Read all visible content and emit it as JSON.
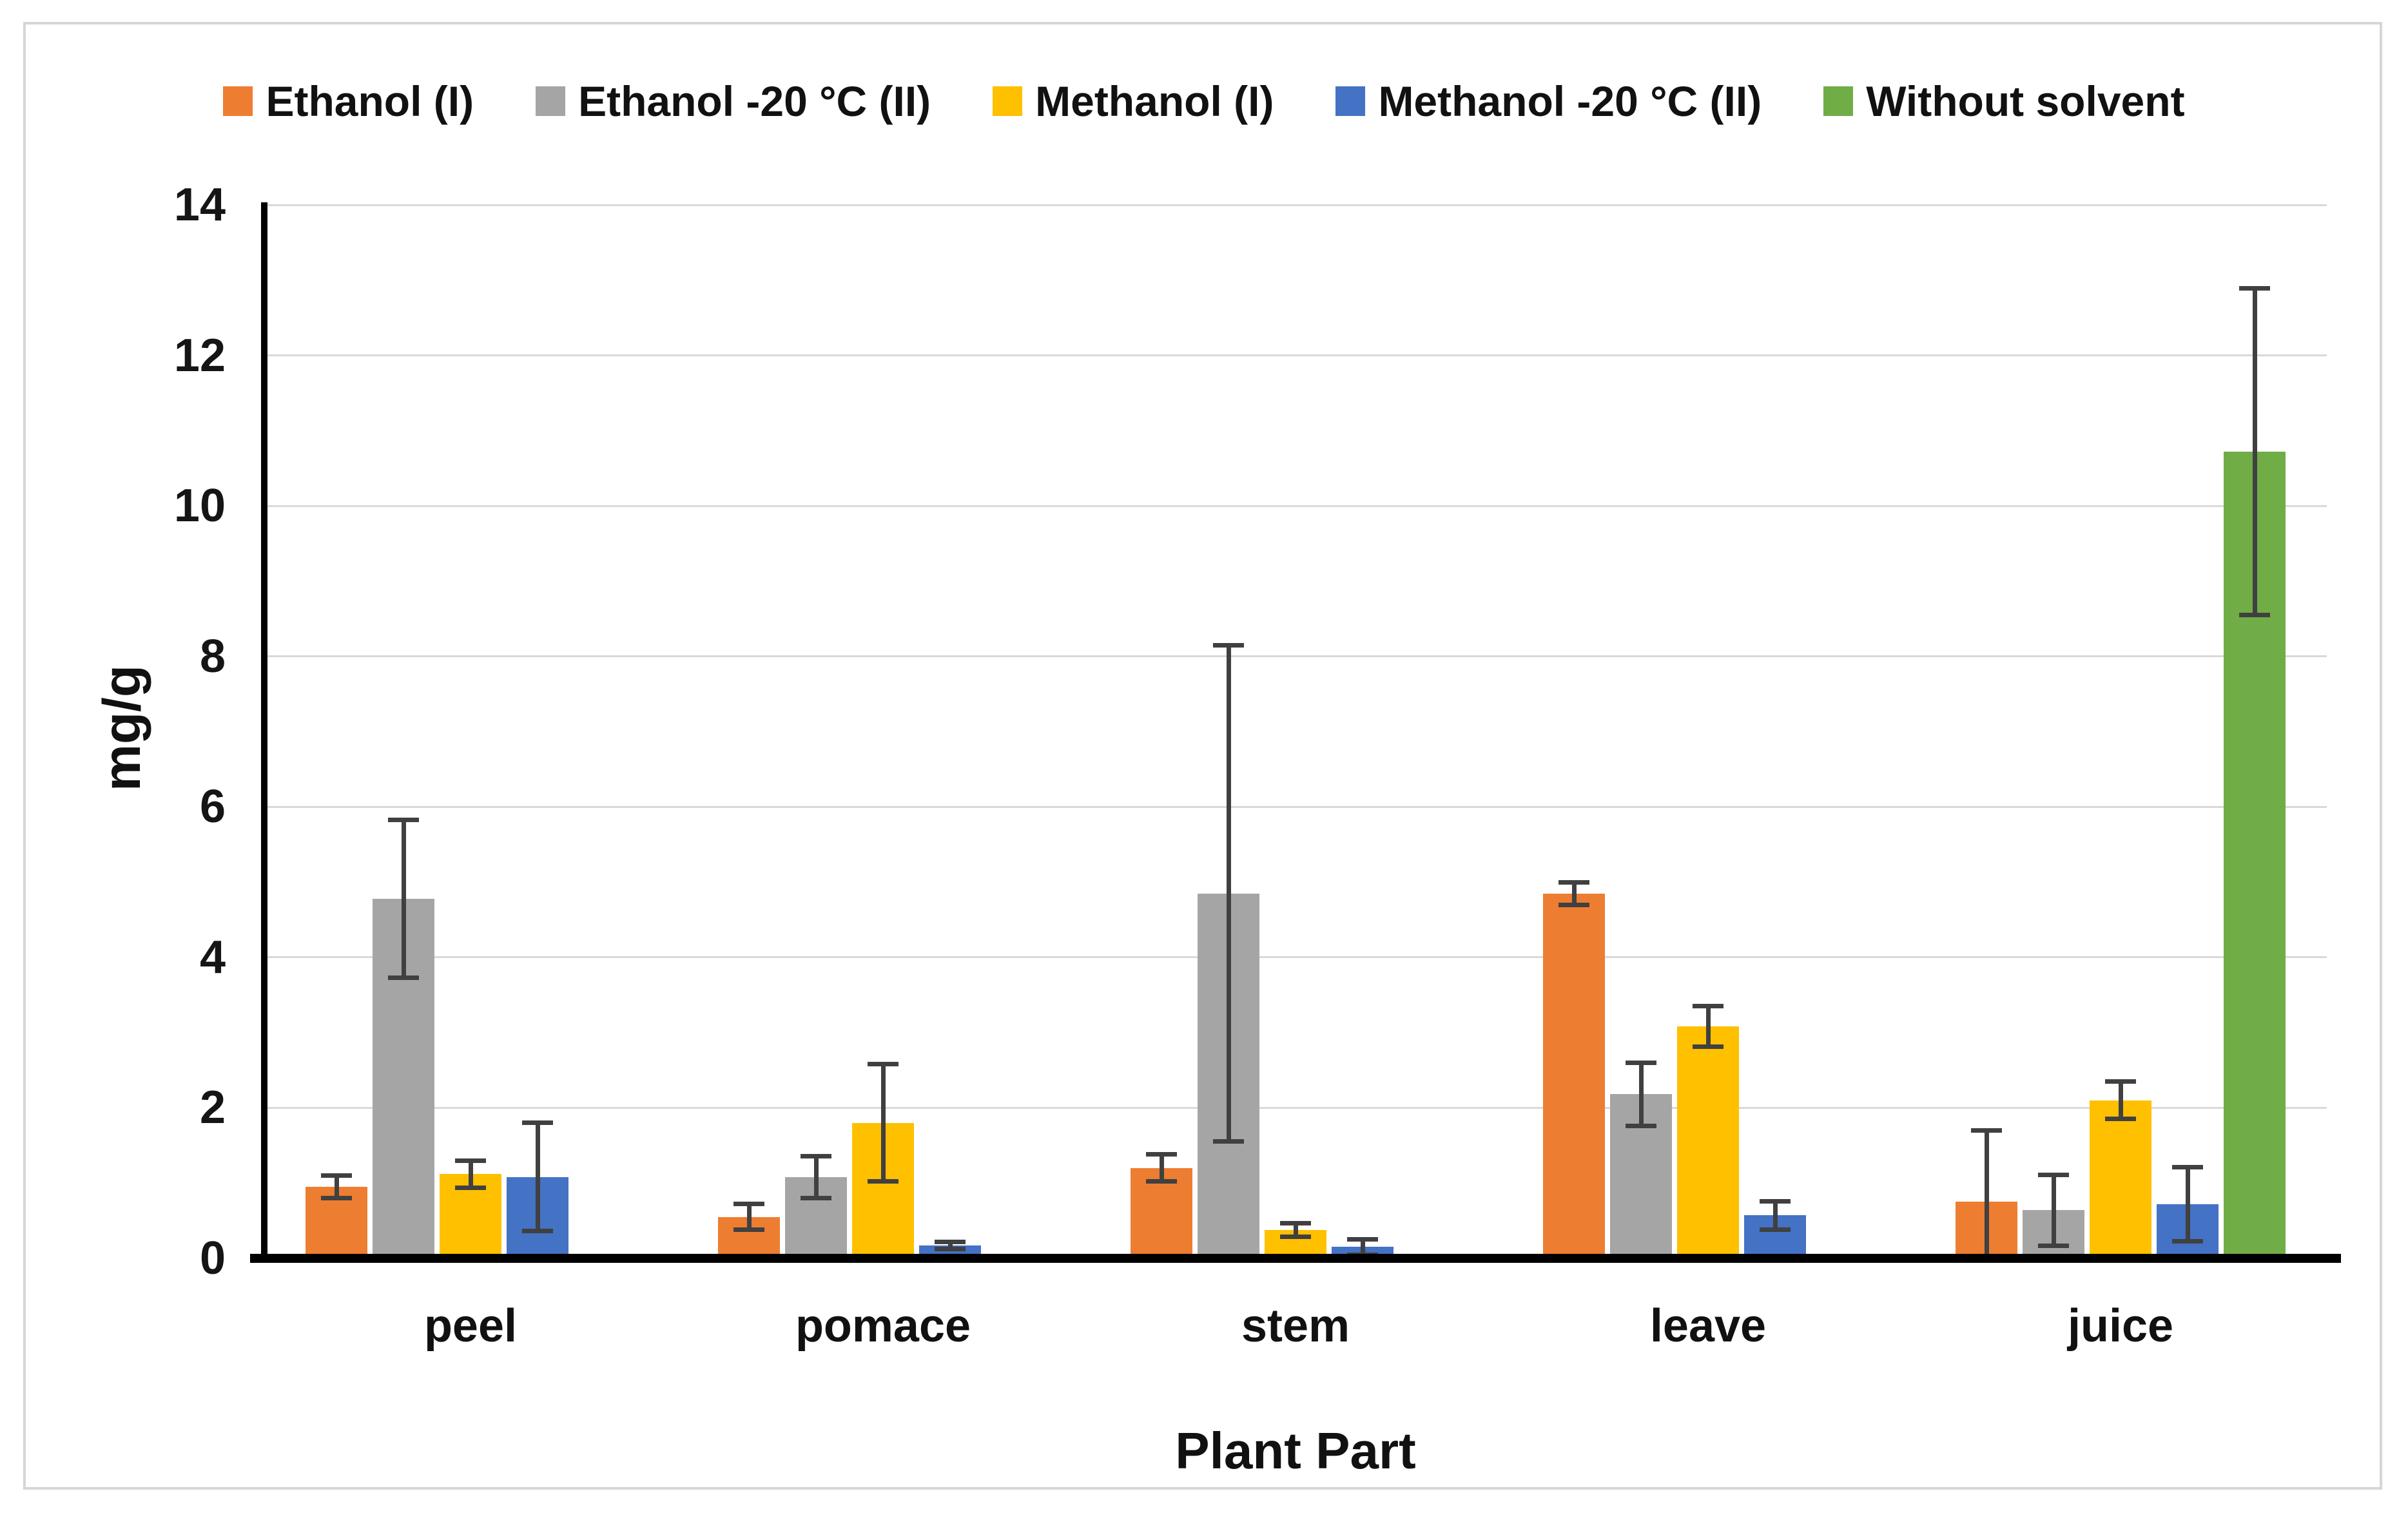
{
  "figure": {
    "background": "#ffffff",
    "border_color": "#d6d6d6",
    "axis_color": "#000000",
    "gridline_color": "#d9d9d9",
    "error_bar_color": "#404040",
    "text_color": "#111111"
  },
  "chart_data": {
    "type": "bar",
    "title": "",
    "xlabel": "Plant Part",
    "ylabel": "mg/g",
    "ylim": [
      0,
      14
    ],
    "yticks": [
      0,
      2,
      4,
      6,
      8,
      10,
      12,
      14
    ],
    "grid": true,
    "legend_position": "top",
    "categories": [
      "peel",
      "pomace",
      "stem",
      "leave",
      "juice"
    ],
    "series": [
      {
        "name": "Ethanol (I)",
        "color": "#ED7D31",
        "values": [
          0.95,
          0.55,
          1.2,
          4.85,
          0.75
        ],
        "errors": [
          0.15,
          0.17,
          0.18,
          0.15,
          0.95
        ]
      },
      {
        "name": "Ethanol -20 °C (II)",
        "color": "#A5A5A5",
        "values": [
          4.78,
          1.08,
          4.85,
          2.18,
          0.64
        ],
        "errors": [
          1.05,
          0.28,
          3.3,
          0.42,
          0.47
        ]
      },
      {
        "name": "Methanol (I)",
        "color": "#FFC000",
        "values": [
          1.12,
          1.8,
          0.38,
          3.08,
          2.1
        ],
        "errors": [
          0.18,
          0.78,
          0.09,
          0.27,
          0.25
        ]
      },
      {
        "name": "Methanol -20 °C (II)",
        "color": "#4472C4",
        "values": [
          1.08,
          0.17,
          0.15,
          0.57,
          0.72
        ],
        "errors": [
          0.72,
          0.05,
          0.1,
          0.19,
          0.49
        ]
      },
      {
        "name": "Without solvent",
        "color": "#70AD47",
        "values": [
          null,
          null,
          null,
          null,
          10.72
        ],
        "errors": [
          null,
          null,
          null,
          null,
          2.17
        ]
      }
    ]
  }
}
